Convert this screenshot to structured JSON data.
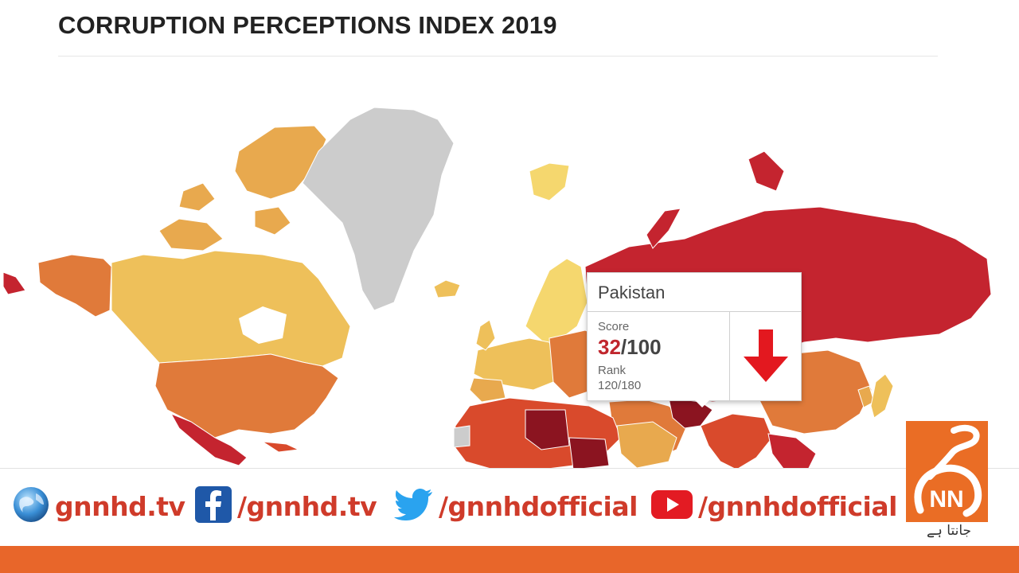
{
  "header": {
    "title": "CORRUPTION PERCEPTIONS INDEX 2019"
  },
  "map": {
    "colors": {
      "highest": "#f5d76e",
      "high": "#eec05a",
      "mid": "#e8a94e",
      "low": "#e07a3a",
      "lower": "#d94a2c",
      "lowest": "#c4242f",
      "very_low": "#8b1420",
      "no_data": "#cccccc"
    }
  },
  "tooltip": {
    "country": "Pakistan",
    "score_label": "Score",
    "score_value": "32",
    "score_total": "/100",
    "rank_label": "Rank",
    "rank_value": "120/180",
    "trend_icon": "down-arrow-icon"
  },
  "footer": {
    "website": {
      "icon": "globe-icon",
      "text": "gnnhd.tv"
    },
    "facebook": {
      "icon": "facebook-icon",
      "text": "/gnnhd.tv"
    },
    "twitter": {
      "icon": "twitter-icon",
      "text": "/gnnhdofficial"
    },
    "youtube": {
      "icon": "youtube-icon",
      "text": "/gnnhdofficial"
    },
    "logo": {
      "tagline": "جانتا ہے"
    },
    "accent_color": "#e8662a"
  }
}
